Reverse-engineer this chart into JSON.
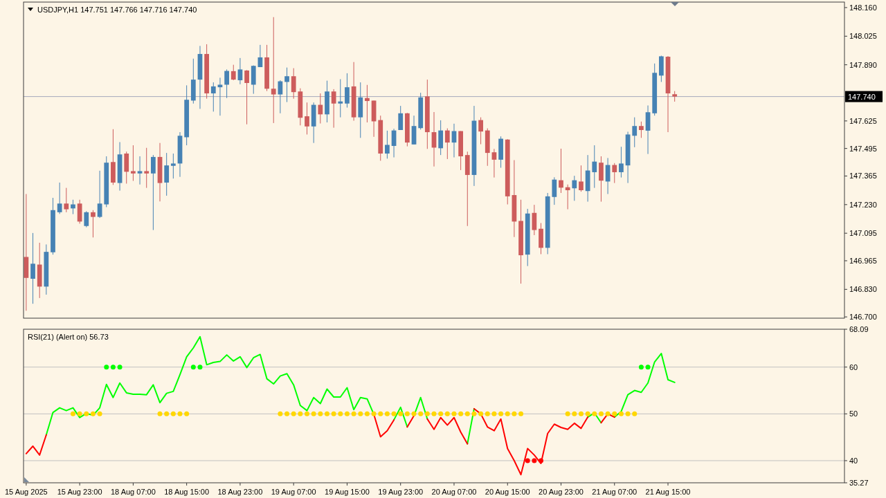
{
  "chart_data": [
    {
      "type": "candlestick",
      "title": "USDJPY,H1 147.751 147.766 147.716 147.740",
      "categories": [
        null,
        null,
        null,
        null,
        null,
        null,
        null,
        null,
        null,
        null,
        null,
        null,
        null,
        null,
        null,
        null,
        null,
        null,
        null,
        null,
        null,
        null,
        null,
        null,
        null,
        null,
        null,
        null,
        null,
        null,
        null,
        null,
        null,
        null,
        null,
        null,
        null,
        null,
        null,
        null,
        null,
        null,
        null,
        null,
        null,
        null,
        null,
        null,
        null,
        null,
        null,
        null,
        null,
        null,
        null,
        null,
        null,
        null,
        null,
        null,
        null,
        null,
        null,
        null,
        null,
        null,
        null,
        null,
        null,
        null,
        null,
        null,
        null,
        null,
        null,
        null,
        null,
        null,
        null,
        null,
        null,
        null,
        null,
        null,
        null,
        null,
        null,
        null,
        null,
        null,
        null,
        null,
        null,
        null,
        null,
        null,
        null,
        null,
        null,
        null,
        null,
        null,
        null,
        null,
        null,
        null,
        null,
        null,
        null,
        null,
        null,
        null,
        null,
        null,
        null,
        null,
        null,
        null,
        null,
        null,
        null,
        null,
        null
      ],
      "ohlc": [
        [
          146.983,
          147.28,
          146.729,
          146.884
        ],
        [
          146.88,
          147.096,
          146.762,
          146.951
        ],
        [
          146.947,
          147.05,
          146.789,
          146.843
        ],
        [
          146.843,
          147.042,
          146.805,
          147.007
        ],
        [
          147.005,
          147.262,
          146.994,
          147.204
        ],
        [
          147.194,
          147.334,
          147.186,
          147.235
        ],
        [
          147.235,
          147.309,
          147.194,
          147.208
        ],
        [
          147.212,
          147.253,
          147.185,
          147.231
        ],
        [
          147.235,
          147.253,
          147.14,
          147.15
        ],
        [
          147.129,
          147.199,
          147.123,
          147.194
        ],
        [
          147.194,
          147.204,
          147.075,
          147.172
        ],
        [
          147.172,
          147.39,
          147.167,
          147.235
        ],
        [
          147.231,
          147.458,
          147.218,
          147.428
        ],
        [
          147.431,
          147.586,
          147.323,
          147.334
        ],
        [
          147.332,
          147.525,
          147.296,
          147.467
        ],
        [
          147.471,
          147.48,
          147.329,
          147.385
        ],
        [
          147.388,
          147.51,
          147.342,
          147.377
        ],
        [
          147.377,
          147.458,
          147.325,
          147.388
        ],
        [
          147.388,
          147.498,
          147.309,
          147.377
        ],
        [
          147.377,
          147.464,
          147.11,
          147.455
        ],
        [
          147.455,
          147.521,
          147.245,
          147.332
        ],
        [
          147.334,
          147.474,
          147.272,
          147.415
        ],
        [
          147.413,
          147.471,
          147.353,
          147.424
        ],
        [
          147.424,
          147.572,
          147.361,
          147.555
        ],
        [
          147.548,
          147.793,
          147.51,
          147.725
        ],
        [
          147.721,
          147.919,
          147.707,
          147.82
        ],
        [
          147.82,
          147.979,
          147.682,
          147.941
        ],
        [
          147.941,
          147.987,
          147.73,
          147.755
        ],
        [
          147.755,
          147.807,
          147.669,
          147.788
        ],
        [
          147.784,
          147.829,
          147.65,
          147.796
        ],
        [
          147.796,
          147.868,
          147.733,
          147.861
        ],
        [
          147.86,
          147.89,
          147.817,
          147.82
        ],
        [
          147.817,
          147.922,
          147.798,
          147.868
        ],
        [
          147.863,
          147.865,
          147.609,
          147.804
        ],
        [
          147.796,
          147.887,
          147.753,
          147.885
        ],
        [
          147.879,
          147.984,
          147.879,
          147.925
        ],
        [
          147.925,
          147.984,
          147.766,
          147.777
        ],
        [
          147.777,
          148.115,
          147.615,
          147.75
        ],
        [
          147.75,
          147.817,
          147.661,
          147.812
        ],
        [
          147.809,
          147.877,
          147.714,
          147.836
        ],
        [
          147.836,
          147.874,
          147.73,
          147.761
        ],
        [
          147.764,
          147.779,
          147.604,
          147.64
        ],
        [
          147.647,
          147.712,
          147.561,
          147.599
        ],
        [
          147.599,
          147.712,
          147.521,
          147.701
        ],
        [
          147.701,
          147.755,
          147.613,
          147.656
        ],
        [
          147.656,
          147.815,
          147.618,
          147.764
        ],
        [
          147.764,
          147.775,
          147.593,
          147.707
        ],
        [
          147.707,
          147.822,
          147.642,
          147.717
        ],
        [
          147.707,
          147.85,
          147.688,
          147.784
        ],
        [
          147.788,
          147.903,
          147.626,
          147.642
        ],
        [
          147.642,
          147.807,
          147.545,
          147.736
        ],
        [
          147.733,
          147.795,
          147.618,
          147.719
        ],
        [
          147.721,
          147.721,
          147.55,
          147.623
        ],
        [
          147.629,
          147.65,
          147.437,
          147.471
        ],
        [
          147.471,
          147.579,
          147.447,
          147.512
        ],
        [
          147.507,
          147.588,
          147.453,
          147.58
        ],
        [
          147.582,
          147.696,
          147.582,
          147.661
        ],
        [
          147.661,
          147.663,
          147.505,
          147.523
        ],
        [
          147.514,
          147.65,
          147.514,
          147.601
        ],
        [
          147.591,
          147.758,
          147.584,
          147.736
        ],
        [
          147.741,
          147.82,
          147.493,
          147.572
        ],
        [
          147.572,
          147.667,
          147.41,
          147.499
        ],
        [
          147.496,
          147.628,
          147.464,
          147.58
        ],
        [
          147.58,
          147.59,
          147.445,
          147.523
        ],
        [
          147.523,
          147.612,
          147.453,
          147.577
        ],
        [
          147.577,
          147.577,
          147.393,
          147.458
        ],
        [
          147.464,
          147.48,
          147.129,
          147.37
        ],
        [
          147.37,
          147.696,
          147.318,
          147.626
        ],
        [
          147.629,
          147.642,
          147.515,
          147.575
        ],
        [
          147.58,
          147.59,
          147.413,
          147.474
        ],
        [
          147.477,
          147.493,
          147.358,
          147.442
        ],
        [
          147.442,
          147.552,
          147.404,
          147.541
        ],
        [
          147.537,
          147.539,
          147.231,
          147.269
        ],
        [
          147.275,
          147.44,
          147.077,
          147.15
        ],
        [
          147.153,
          147.253,
          146.857,
          146.991
        ],
        [
          146.994,
          147.21,
          146.94,
          147.188
        ],
        [
          147.191,
          147.229,
          147.086,
          147.11
        ],
        [
          147.116,
          147.143,
          146.996,
          147.026
        ],
        [
          147.026,
          147.285,
          146.996,
          147.269
        ],
        [
          147.266,
          147.359,
          147.229,
          147.348
        ],
        [
          147.345,
          147.494,
          147.285,
          147.31
        ],
        [
          147.312,
          147.325,
          147.208,
          147.298
        ],
        [
          147.307,
          147.366,
          147.248,
          147.345
        ],
        [
          147.339,
          147.415,
          147.291,
          147.298
        ],
        [
          147.294,
          147.464,
          147.244,
          147.391
        ],
        [
          147.383,
          147.51,
          147.309,
          147.433
        ],
        [
          147.428,
          147.458,
          147.244,
          147.343
        ],
        [
          147.339,
          147.45,
          147.28,
          147.417
        ],
        [
          147.417,
          147.426,
          147.332,
          147.383
        ],
        [
          147.383,
          147.503,
          147.358,
          147.424
        ],
        [
          147.415,
          147.574,
          147.332,
          147.561
        ],
        [
          147.555,
          147.642,
          147.501,
          147.601
        ],
        [
          147.601,
          147.622,
          147.545,
          147.582
        ],
        [
          147.579,
          147.698,
          147.469,
          147.666
        ],
        [
          147.661,
          147.896,
          147.65,
          147.852
        ],
        [
          147.839,
          147.933,
          147.809,
          147.93
        ],
        [
          147.928,
          147.931,
          147.572,
          147.755
        ],
        [
          147.751,
          147.766,
          147.716,
          147.74
        ],
        null,
        null,
        null,
        null,
        null,
        null,
        null,
        null,
        null,
        null,
        null,
        null,
        null,
        null,
        null,
        null,
        null,
        null,
        null,
        null,
        null,
        null,
        null,
        null,
        null
      ],
      "colors": [
        "#cd5c5c",
        "#4682b4",
        "#cd5c5c",
        "#4682b4",
        "#4682b4",
        "#4682b4",
        "#cd5c5c",
        "#4682b4",
        "#cd5c5c",
        "#4682b4",
        "#cd5c5c",
        "#4682b4",
        "#4682b4",
        "#cd5c5c",
        "#4682b4",
        "#cd5c5c",
        "#cd5c5c",
        "#4682b4",
        "#cd5c5c",
        "#4682b4",
        "#cd5c5c",
        "#4682b4",
        "#4682b4",
        "#4682b4",
        "#4682b4",
        "#4682b4",
        "#4682b4",
        "#cd5c5c",
        "#4682b4",
        "#4682b4",
        "#4682b4",
        "#cd5c5c",
        "#4682b4",
        "#cd5c5c",
        "#4682b4",
        "#4682b4",
        "#cd5c5c",
        "#cd5c5c",
        "#4682b4",
        "#4682b4",
        "#cd5c5c",
        "#cd5c5c",
        "#cd5c5c",
        "#4682b4",
        "#cd5c5c",
        "#4682b4",
        "#cd5c5c",
        "#4682b4",
        "#4682b4",
        "#cd5c5c",
        "#4682b4",
        "#cd5c5c",
        "#cd5c5c",
        "#cd5c5c",
        "#4682b4",
        "#4682b4",
        "#4682b4",
        "#cd5c5c",
        "#4682b4",
        "#4682b4",
        "#cd5c5c",
        "#cd5c5c",
        "#4682b4",
        "#cd5c5c",
        "#4682b4",
        "#cd5c5c",
        "#cd5c5c",
        "#4682b4",
        "#cd5c5c",
        "#cd5c5c",
        "#cd5c5c",
        "#4682b4",
        "#cd5c5c",
        "#cd5c5c",
        "#cd5c5c",
        "#4682b4",
        "#cd5c5c",
        "#cd5c5c",
        "#4682b4",
        "#4682b4",
        "#cd5c5c",
        "#cd5c5c",
        "#4682b4",
        "#cd5c5c",
        "#4682b4",
        "#4682b4",
        "#cd5c5c",
        "#4682b4",
        "#cd5c5c",
        "#4682b4",
        "#4682b4",
        "#4682b4",
        "#cd5c5c",
        "#4682b4",
        "#4682b4",
        "#4682b4",
        "#cd5c5c",
        "#cd5c5c",
        null,
        null,
        null,
        null,
        null,
        null,
        null,
        null,
        null,
        null,
        null,
        null,
        null,
        null,
        null,
        null,
        null,
        null,
        null,
        null,
        null,
        null,
        null,
        null,
        null
      ],
      "ylim": [
        146.694,
        148.186
      ],
      "yticks": [
        {
          "value": 148.16,
          "label": "148.160"
        },
        148.025,
        {
          "value": 147.89,
          "label": "147.890"
        },
        147.625,
        147.495,
        147.365,
        {
          "value": 147.23,
          "label": "147.230"
        },
        147.095,
        146.965,
        {
          "value": 146.83,
          "label": "146.830"
        },
        {
          "value": 146.7,
          "label": "146.700"
        }
      ],
      "ref_lines": [
        {
          "axis": "y",
          "value": 147.74,
          "label": "147.740",
          "color": "#a4a8bc"
        }
      ]
    },
    {
      "type": "line",
      "title": "RSI(21) (Alert on) 56.73",
      "categories": [
        "15 Aug 2025",
        null,
        null,
        null,
        null,
        null,
        null,
        null,
        "15 Aug 23:00",
        null,
        null,
        null,
        null,
        null,
        null,
        null,
        "18 Aug 07:00",
        null,
        null,
        null,
        null,
        null,
        null,
        null,
        "18 Aug 15:00",
        null,
        null,
        null,
        null,
        null,
        null,
        null,
        "18 Aug 23:00",
        null,
        null,
        null,
        null,
        null,
        null,
        null,
        "19 Aug 07:00",
        null,
        null,
        null,
        null,
        null,
        null,
        null,
        "19 Aug 15:00",
        null,
        null,
        null,
        null,
        null,
        null,
        null,
        "19 Aug 23:00",
        null,
        null,
        null,
        null,
        null,
        null,
        null,
        "20 Aug 07:00",
        null,
        null,
        null,
        null,
        null,
        null,
        null,
        "20 Aug 15:00",
        null,
        null,
        null,
        null,
        null,
        null,
        null,
        "20 Aug 23:00",
        null,
        null,
        null,
        null,
        null,
        null,
        null,
        "21 Aug 07:00",
        null,
        null,
        null,
        null,
        null,
        null,
        null,
        "21 Aug 15:00",
        null,
        null,
        null,
        null,
        null,
        null,
        null,
        null,
        null,
        null,
        null,
        null,
        null,
        null,
        null,
        null,
        null,
        null,
        null,
        null,
        null,
        null,
        null,
        null,
        null,
        null
      ],
      "series": [
        {
          "color": "#00ff00",
          "values": [
            null,
            null,
            null,
            45.5,
            50.3,
            51.3,
            50.7,
            51.3,
            49.2,
            50.1,
            49.7,
            51.3,
            56.3,
            53.5,
            56.6,
            54.5,
            54.2,
            54.2,
            54.1,
            56.2,
            52.4,
            54.4,
            54.8,
            58.4,
            62.2,
            64.1,
            66.5,
            60.5,
            61.0,
            61.2,
            62.6,
            61.3,
            62.2,
            59.9,
            62.0,
            62.7,
            57.5,
            56.4,
            58.1,
            58.6,
            56.2,
            51.8,
            50.7,
            53.5,
            52.2,
            55.3,
            53.6,
            53.6,
            55.6,
            50.9,
            53.5,
            53.2,
            49.9,
            null,
            null,
            null,
            null,
            null,
            49.6,
            53.5,
            48.9,
            null,
            null,
            null,
            null,
            null,
            null,
            null,
            null,
            null,
            null,
            null,
            null,
            null,
            null,
            null,
            null,
            null,
            null,
            null,
            null,
            null,
            null,
            null,
            49.3,
            50.2,
            48.1,
            null,
            null,
            null,
            null,
            null,
            null,
            null,
            null,
            null,
            null,
            null,
            null,
            null,
            null,
            null,
            null,
            null,
            null,
            null,
            null,
            null,
            null,
            null,
            null,
            null,
            null,
            null,
            null,
            null,
            null,
            null,
            null,
            null,
            null,
            null,
            null
          ]
        },
        {
          "color": "#00ff00",
          "values": [
            null,
            null,
            null,
            null,
            null,
            null,
            null,
            null,
            null,
            null,
            null,
            null,
            null,
            null,
            null,
            null,
            null,
            null,
            null,
            null,
            null,
            null,
            null,
            null,
            null,
            null,
            null,
            null,
            null,
            null,
            null,
            null,
            null,
            null,
            null,
            null,
            null,
            null,
            null,
            null,
            null,
            null,
            null,
            null,
            null,
            null,
            null,
            null,
            null,
            null,
            null,
            null,
            null,
            null,
            null,
            48.7,
            51.4,
            47.2,
            null,
            null,
            null,
            null,
            null,
            null,
            null,
            null,
            43.6,
            51.1,
            null,
            null,
            null,
            null,
            null,
            null,
            null,
            null,
            null,
            null,
            null,
            null,
            null,
            null,
            null,
            null,
            null,
            null,
            null,
            null,
            49.3,
            50.5,
            54.1,
            55.0,
            54.6,
            56.6,
            61.1,
            62.9,
            57.3,
            56.73,
            null,
            null,
            null,
            null,
            null,
            null,
            null,
            null,
            null,
            null,
            null,
            null,
            null,
            null,
            null,
            null,
            null,
            null,
            null,
            null,
            null,
            null,
            null,
            null,
            null
          ]
        },
        {
          "color": "#ff0000",
          "values": [
            41.5,
            43.1,
            41.2,
            45.5,
            null,
            null,
            null,
            null,
            null,
            null,
            null,
            null,
            null,
            null,
            null,
            null,
            null,
            null,
            null,
            null,
            null,
            null,
            null,
            null,
            null,
            null,
            null,
            null,
            null,
            null,
            null,
            null,
            null,
            null,
            null,
            null,
            null,
            null,
            null,
            null,
            null,
            null,
            null,
            null,
            null,
            null,
            null,
            null,
            null,
            null,
            null,
            null,
            null,
            null,
            null,
            null,
            null,
            47.2,
            49.6,
            null,
            null,
            null,
            null,
            null,
            null,
            null,
            null,
            51.1,
            50.0,
            47.2,
            46.4,
            48.9,
            42.6,
            40.0,
            37.0,
            42.6,
            41.2,
            39.4,
            45.8,
            47.8,
            47.1,
            46.7,
            48.0,
            46.9,
            49.3,
            null,
            null,
            null,
            null,
            null,
            null,
            null,
            null,
            null,
            null,
            null,
            null,
            null,
            null,
            null,
            null,
            null,
            null,
            null,
            null,
            null,
            null,
            null,
            null,
            null,
            null,
            null,
            null,
            null,
            null,
            null,
            null,
            null,
            null,
            null,
            null,
            null,
            null
          ]
        },
        {
          "color": "#ff0000",
          "values": [
            null,
            null,
            null,
            null,
            null,
            null,
            null,
            null,
            null,
            null,
            null,
            null,
            null,
            null,
            null,
            null,
            null,
            null,
            null,
            null,
            null,
            null,
            null,
            null,
            null,
            null,
            null,
            null,
            null,
            null,
            null,
            null,
            null,
            null,
            null,
            null,
            null,
            null,
            null,
            null,
            null,
            null,
            null,
            null,
            null,
            null,
            null,
            null,
            null,
            null,
            null,
            null,
            49.9,
            45.1,
            46.4,
            48.7,
            null,
            null,
            null,
            null,
            48.9,
            46.7,
            49.2,
            47.6,
            49.2,
            46.1,
            43.6,
            null,
            null,
            null,
            null,
            null,
            null,
            null,
            null,
            null,
            null,
            null,
            null,
            null,
            null,
            null,
            null,
            null,
            null,
            null,
            48.1,
            50.0,
            49.3,
            null,
            null,
            null,
            null,
            null,
            null,
            null,
            null,
            null,
            null,
            null,
            null,
            null,
            null,
            null,
            null,
            null,
            null,
            null,
            null,
            null,
            null,
            null,
            null,
            null,
            null,
            null,
            null,
            null,
            null,
            null,
            null,
            null,
            null
          ]
        },
        {
          "type": "scatter",
          "marker": "circle",
          "color": "#ffd700",
          "values": [
            null,
            null,
            null,
            null,
            null,
            null,
            null,
            50,
            50,
            50,
            50,
            50,
            null,
            null,
            null,
            null,
            null,
            null,
            null,
            null,
            50,
            50,
            50,
            50,
            50,
            null,
            null,
            null,
            null,
            null,
            null,
            null,
            null,
            null,
            null,
            null,
            null,
            null,
            50,
            50,
            50,
            50,
            50,
            50,
            50,
            50,
            50,
            50,
            50,
            50,
            50,
            50,
            50,
            50,
            50,
            50,
            50,
            50,
            50,
            50,
            50,
            50,
            50,
            50,
            50,
            50,
            50,
            50,
            50,
            50,
            50,
            50,
            50,
            50,
            50,
            null,
            null,
            null,
            null,
            null,
            null,
            50,
            50,
            50,
            50,
            50,
            50,
            50,
            50,
            50,
            50,
            50,
            null,
            null,
            null,
            null,
            null,
            null,
            null,
            null,
            null,
            null,
            null,
            null,
            null,
            null,
            null,
            null,
            null,
            null,
            null,
            null,
            null,
            null,
            null,
            null,
            null,
            null,
            null,
            null,
            null,
            null,
            null
          ]
        },
        {
          "type": "scatter",
          "marker": "circle",
          "color": "#00ff00",
          "values": [
            null,
            null,
            null,
            null,
            null,
            null,
            null,
            null,
            null,
            null,
            null,
            null,
            60,
            60,
            60,
            null,
            null,
            null,
            null,
            null,
            null,
            null,
            null,
            null,
            null,
            60,
            60,
            null,
            null,
            null,
            null,
            null,
            null,
            null,
            null,
            null,
            null,
            null,
            null,
            null,
            null,
            null,
            null,
            null,
            null,
            null,
            null,
            null,
            null,
            null,
            null,
            null,
            null,
            null,
            null,
            null,
            null,
            null,
            null,
            null,
            null,
            null,
            null,
            null,
            null,
            null,
            null,
            null,
            null,
            null,
            null,
            null,
            null,
            null,
            null,
            null,
            null,
            null,
            null,
            null,
            null,
            null,
            null,
            null,
            null,
            null,
            null,
            null,
            null,
            null,
            null,
            null,
            60,
            60,
            null,
            null,
            null,
            null,
            null,
            null,
            null,
            null,
            null,
            null,
            null,
            null,
            null,
            null,
            null,
            null,
            null,
            null,
            null,
            null,
            null,
            null,
            null,
            null,
            null,
            null,
            null,
            null,
            null
          ]
        },
        {
          "type": "scatter",
          "marker": "circle",
          "color": "#ff0000",
          "values": [
            null,
            null,
            null,
            null,
            null,
            null,
            null,
            null,
            null,
            null,
            null,
            null,
            null,
            null,
            null,
            null,
            null,
            null,
            null,
            null,
            null,
            null,
            null,
            null,
            null,
            null,
            null,
            null,
            null,
            null,
            null,
            null,
            null,
            null,
            null,
            null,
            null,
            null,
            null,
            null,
            null,
            null,
            null,
            null,
            null,
            null,
            null,
            null,
            null,
            null,
            null,
            null,
            null,
            null,
            null,
            null,
            null,
            null,
            null,
            null,
            null,
            null,
            null,
            null,
            null,
            null,
            null,
            null,
            null,
            null,
            null,
            null,
            null,
            null,
            null,
            40,
            40,
            40,
            null,
            null,
            null,
            null,
            null,
            null,
            null,
            null,
            null,
            null,
            null,
            null,
            null,
            null,
            null,
            null,
            null,
            null,
            null,
            null,
            null,
            null,
            null,
            null,
            null,
            null,
            null,
            null,
            null,
            null,
            null,
            null,
            null,
            null,
            null,
            null,
            null,
            null,
            null,
            null,
            null,
            null,
            null,
            null,
            null
          ]
        }
      ],
      "ylim": [
        35.27,
        68.09
      ],
      "yticks": [
        35.27,
        40,
        50,
        60,
        68.09
      ],
      "ref_lines": [
        {
          "axis": "y",
          "value": 40,
          "color": "#c0c0c0"
        },
        {
          "axis": "y",
          "value": 50,
          "color": "#c0c0c0"
        },
        {
          "axis": "y",
          "value": 60,
          "color": "#c0c0c0"
        }
      ]
    }
  ]
}
